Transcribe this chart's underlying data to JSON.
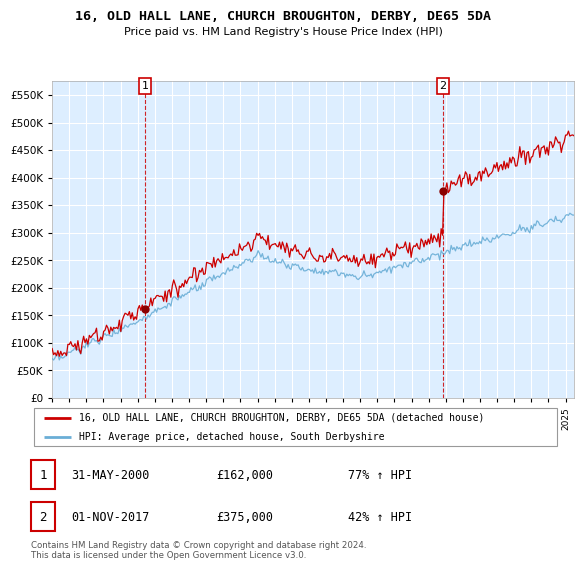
{
  "title": "16, OLD HALL LANE, CHURCH BROUGHTON, DERBY, DE65 5DA",
  "subtitle": "Price paid vs. HM Land Registry's House Price Index (HPI)",
  "ylim": [
    0,
    575000
  ],
  "yticks": [
    0,
    50000,
    100000,
    150000,
    200000,
    250000,
    300000,
    350000,
    400000,
    450000,
    500000,
    550000
  ],
  "legend_entry1": "16, OLD HALL LANE, CHURCH BROUGHTON, DERBY, DE65 5DA (detached house)",
  "legend_entry2": "HPI: Average price, detached house, South Derbyshire",
  "sale1_date": "31-MAY-2000",
  "sale1_price": "£162,000",
  "sale1_pct": "77% ↑ HPI",
  "sale1_year": 2000.42,
  "sale1_value": 162000,
  "sale2_date": "01-NOV-2017",
  "sale2_price": "£375,000",
  "sale2_pct": "42% ↑ HPI",
  "sale2_year": 2017.83,
  "sale2_value": 375000,
  "hpi_color": "#6aaed6",
  "price_color": "#cc0000",
  "marker_color": "#8b0000",
  "footnote": "Contains HM Land Registry data © Crown copyright and database right 2024.\nThis data is licensed under the Open Government Licence v3.0.",
  "plot_bg_color": "#ddeeff",
  "grid_color": "#ffffff",
  "fig_bg_color": "#ffffff"
}
